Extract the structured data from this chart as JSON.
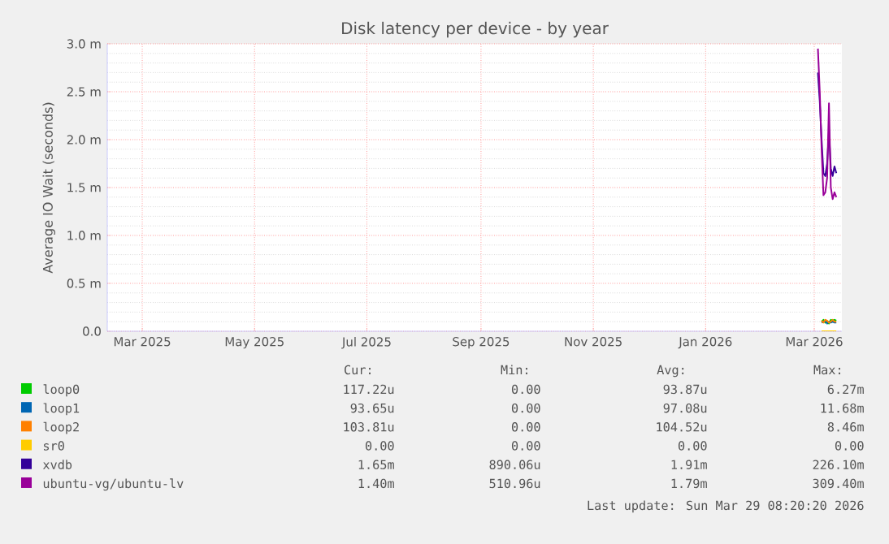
{
  "chart_data": {
    "type": "line",
    "title": "Disk latency per device - by year",
    "ylabel": "Average IO Wait (seconds)",
    "x": [
      "2026-03-03",
      "2026-03-04",
      "2026-03-05",
      "2026-03-06",
      "2026-03-07",
      "2026-03-08",
      "2026-03-09",
      "2026-03-10",
      "2026-03-11",
      "2026-03-12",
      "2026-03-13"
    ],
    "xlim": [
      "2025-02-10",
      "2026-03-16"
    ],
    "xticks": [
      {
        "value": "2025-03-01",
        "label": "Mar 2025"
      },
      {
        "value": "2025-05-01",
        "label": "May 2025"
      },
      {
        "value": "2025-07-01",
        "label": "Jul 2025"
      },
      {
        "value": "2025-09-01",
        "label": "Sep 2025"
      },
      {
        "value": "2025-11-01",
        "label": "Nov 2025"
      },
      {
        "value": "2026-01-01",
        "label": "Jan 2026"
      },
      {
        "value": "2026-03-01",
        "label": "Mar 2026"
      }
    ],
    "ylim": [
      0,
      3.0
    ],
    "yticks": [
      {
        "value": 0,
        "label": "0.0"
      },
      {
        "value": 0.5,
        "label": "0.5 m"
      },
      {
        "value": 1.0,
        "label": "1.0 m"
      },
      {
        "value": 1.5,
        "label": "1.5 m"
      },
      {
        "value": 2.0,
        "label": "2.0 m"
      },
      {
        "value": 2.5,
        "label": "2.5 m"
      },
      {
        "value": 3.0,
        "label": "3.0 m"
      }
    ],
    "grid": true,
    "legend": "bottom",
    "series": [
      {
        "name": "loop0",
        "color": "#00cc00",
        "values": [
          null,
          null,
          0.1,
          0.12,
          0.09,
          0.1,
          0.08,
          0.12,
          0.11,
          0.12,
          0.11
        ]
      },
      {
        "name": "loop1",
        "color": "#0066b3",
        "values": [
          null,
          null,
          0.09,
          0.1,
          0.11,
          0.08,
          0.1,
          0.09,
          0.1,
          0.09,
          0.09
        ]
      },
      {
        "name": "loop2",
        "color": "#ff8000",
        "values": [
          null,
          null,
          0.11,
          0.09,
          0.12,
          0.11,
          0.09,
          0.1,
          0.12,
          0.1,
          0.1
        ]
      },
      {
        "name": "sr0",
        "color": "#ffcc00",
        "values": [
          null,
          null,
          0,
          0,
          0,
          0,
          0,
          0,
          0,
          0,
          0
        ]
      },
      {
        "name": "xvdb",
        "color": "#330099",
        "values": [
          2.7,
          2.4,
          2.0,
          1.65,
          1.62,
          1.75,
          2.1,
          1.7,
          1.62,
          1.72,
          1.65
        ]
      },
      {
        "name": "ubuntu-vg/ubuntu-lv",
        "color": "#990099",
        "values": [
          2.95,
          2.5,
          1.9,
          1.42,
          1.45,
          1.6,
          2.38,
          1.5,
          1.38,
          1.45,
          1.4
        ]
      }
    ],
    "annotations": [
      "Cur:",
      "Min:",
      "Avg:",
      "Max:",
      "117.22u",
      "0.00",
      "93.87u",
      "6.27m",
      "93.65u",
      "0.00",
      "97.08u",
      "11.68m",
      "103.81u",
      "0.00",
      "104.52u",
      "8.46m",
      "0.00",
      "0.00",
      "0.00",
      "0.00",
      "1.65m",
      "890.06u",
      "1.91m",
      "226.10m",
      "1.40m",
      "510.96u",
      "1.79m",
      "309.40m",
      "Last update: Sun Mar 29 08:20:20 2026"
    ]
  }
}
